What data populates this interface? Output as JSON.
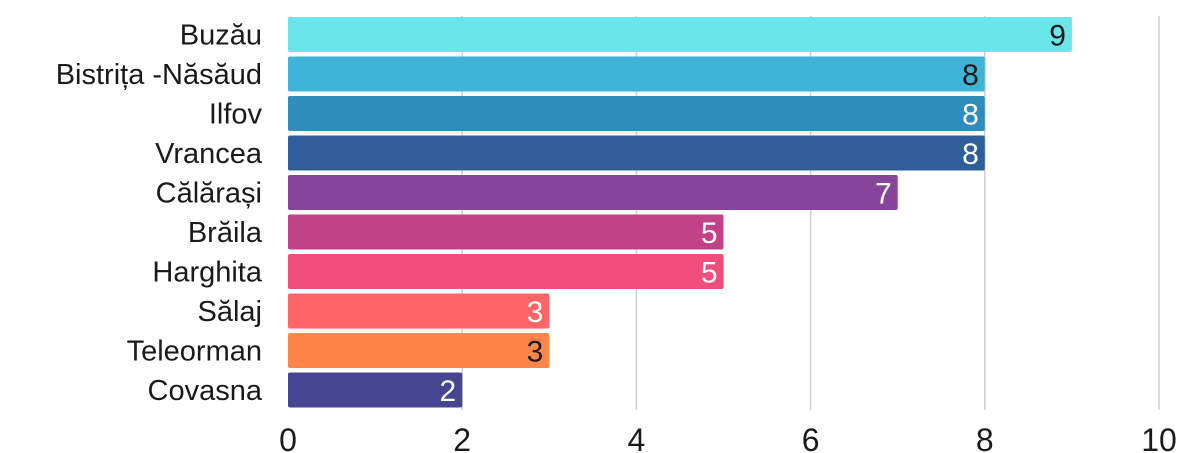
{
  "chart_data": {
    "type": "bar",
    "orientation": "horizontal",
    "categories": [
      "Buzău",
      "Bistrița -Năsăud",
      "Ilfov",
      "Vrancea",
      "Călărași",
      "Brăila",
      "Harghita",
      "Sălaj",
      "Teleorman",
      "Covasna"
    ],
    "values": [
      9,
      8,
      8,
      8,
      7,
      5,
      5,
      3,
      3,
      2
    ],
    "colors": [
      "#6ae5ea",
      "#3fb4d6",
      "#2e8dbb",
      "#2f5f99",
      "#86459b",
      "#c04289",
      "#ef4e7c",
      "#ff6567",
      "#ff8548",
      "#45468f"
    ],
    "label_colors": [
      "#1a1a1a",
      "#1a1a1a",
      "#ffffff",
      "#ffffff",
      "#ffffff",
      "#ffffff",
      "#ffffff",
      "#ffffff",
      "#1a1a1a",
      "#ffffff"
    ],
    "xlim": [
      0,
      10
    ],
    "xticks": [
      0,
      2,
      4,
      6,
      8,
      10
    ],
    "grid": true,
    "legend": "none",
    "title": "",
    "xlabel": "",
    "ylabel": ""
  }
}
